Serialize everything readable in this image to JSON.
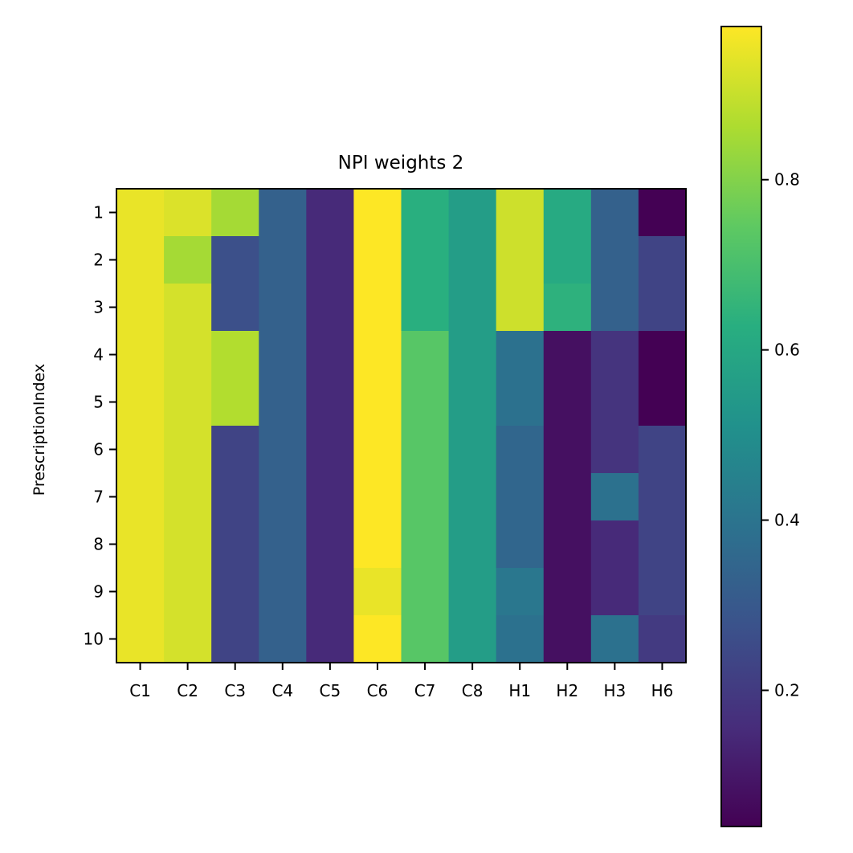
{
  "chart_data": {
    "type": "heatmap",
    "title": "NPI weights 2",
    "xlabel": "",
    "ylabel": "PrescriptionIndex",
    "x_categories": [
      "C1",
      "C2",
      "C3",
      "C4",
      "C5",
      "C6",
      "C7",
      "C8",
      "H1",
      "H2",
      "H3",
      "H6"
    ],
    "y_categories": [
      "1",
      "2",
      "3",
      "4",
      "5",
      "6",
      "7",
      "8",
      "9",
      "10"
    ],
    "values": [
      [
        0.95,
        0.93,
        0.85,
        0.33,
        0.15,
        0.98,
        0.63,
        0.56,
        0.91,
        0.61,
        0.33,
        0.04
      ],
      [
        0.95,
        0.85,
        0.27,
        0.33,
        0.15,
        0.98,
        0.63,
        0.56,
        0.91,
        0.61,
        0.33,
        0.23
      ],
      [
        0.95,
        0.92,
        0.27,
        0.33,
        0.15,
        0.98,
        0.63,
        0.56,
        0.91,
        0.64,
        0.33,
        0.23
      ],
      [
        0.95,
        0.92,
        0.87,
        0.33,
        0.15,
        0.98,
        0.73,
        0.56,
        0.39,
        0.08,
        0.18,
        0.04
      ],
      [
        0.95,
        0.92,
        0.87,
        0.33,
        0.15,
        0.98,
        0.73,
        0.56,
        0.39,
        0.08,
        0.18,
        0.04
      ],
      [
        0.95,
        0.92,
        0.23,
        0.33,
        0.15,
        0.98,
        0.73,
        0.56,
        0.35,
        0.08,
        0.18,
        0.23
      ],
      [
        0.95,
        0.92,
        0.23,
        0.33,
        0.15,
        0.98,
        0.73,
        0.56,
        0.35,
        0.08,
        0.39,
        0.23
      ],
      [
        0.95,
        0.92,
        0.23,
        0.33,
        0.15,
        0.98,
        0.73,
        0.56,
        0.35,
        0.08,
        0.15,
        0.23
      ],
      [
        0.95,
        0.92,
        0.23,
        0.33,
        0.15,
        0.95,
        0.73,
        0.56,
        0.41,
        0.08,
        0.15,
        0.23
      ],
      [
        0.95,
        0.92,
        0.23,
        0.33,
        0.15,
        0.98,
        0.73,
        0.56,
        0.39,
        0.08,
        0.39,
        0.2
      ]
    ],
    "colormap": "viridis",
    "colorbar": {
      "vmin": 0.04,
      "vmax": 0.98,
      "ticks": [
        0.2,
        0.4,
        0.6,
        0.8
      ],
      "tick_labels": [
        "0.2",
        "0.4",
        "0.6",
        "0.8"
      ],
      "placement": "right"
    },
    "grid": false
  }
}
